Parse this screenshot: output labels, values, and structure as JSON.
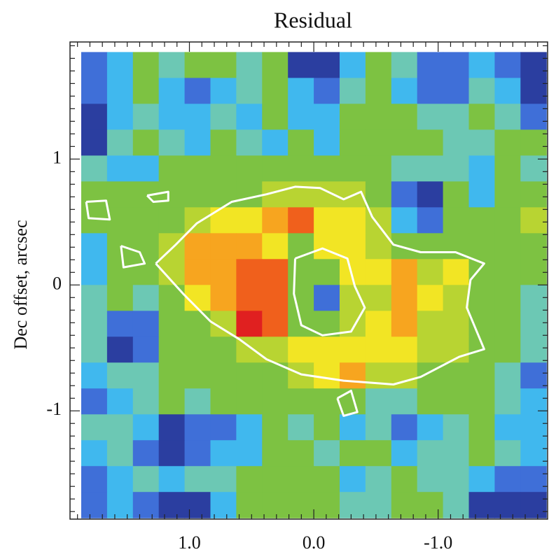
{
  "chart_data": {
    "type": "heatmap",
    "title": "Residual",
    "y_label": "Dec offset, arcsec",
    "xlim": [
      1.96,
      -1.88
    ],
    "ylim": [
      -1.86,
      1.93
    ],
    "xticks": [
      {
        "value": 1.0,
        "label": "1.0"
      },
      {
        "value": 0.0,
        "label": "0.0"
      },
      {
        "value": -1.0,
        "label": "-1.0"
      }
    ],
    "yticks": [
      1,
      0,
      -1
    ],
    "xminorticks": [
      1.9,
      1.8,
      1.7,
      1.6,
      1.5,
      1.4,
      1.3,
      1.2,
      1.1,
      0.9,
      0.8,
      0.7,
      0.6,
      0.5,
      0.4,
      0.3,
      0.2,
      0.1,
      -0.1,
      -0.2,
      -0.3,
      -0.4,
      -0.5,
      -0.6,
      -0.7,
      -0.8,
      -0.9,
      -1.1,
      -1.2,
      -1.3,
      -1.4,
      -1.5,
      -1.6,
      -1.7,
      -1.8
    ],
    "yminorticks": [
      1.9,
      1.8,
      1.7,
      1.6,
      1.5,
      1.4,
      1.3,
      1.2,
      1.1,
      0.9,
      0.8,
      0.7,
      0.6,
      0.5,
      0.4,
      0.3,
      0.2,
      0.1,
      -0.1,
      -0.2,
      -0.3,
      -0.4,
      -0.5,
      -0.6,
      -0.7,
      -0.8,
      -0.9,
      -1.1,
      -1.2,
      -1.3,
      -1.4,
      -1.5,
      -1.6,
      -1.7,
      -1.8
    ],
    "x_extent": [
      1.87,
      -1.87
    ],
    "y_extent": [
      1.85,
      -1.85
    ],
    "colorscale": [
      "#1a0a3a",
      "#2b3ea0",
      "#3f6fd8",
      "#40b8ee",
      "#6cc8b4",
      "#7dc242",
      "#b8d432",
      "#f2e524",
      "#f7a51f",
      "#f0601c",
      "#e02020"
    ],
    "z": [
      [
        2,
        3,
        5,
        4,
        5,
        5,
        4,
        5,
        1,
        1,
        3,
        5,
        4,
        2,
        2,
        3,
        2,
        1
      ],
      [
        2,
        3,
        5,
        3,
        2,
        3,
        4,
        5,
        3,
        2,
        4,
        5,
        3,
        2,
        2,
        4,
        3,
        1
      ],
      [
        1,
        3,
        4,
        3,
        3,
        4,
        3,
        5,
        3,
        3,
        5,
        5,
        5,
        4,
        4,
        5,
        4,
        2
      ],
      [
        1,
        4,
        5,
        4,
        3,
        5,
        4,
        3,
        5,
        3,
        5,
        5,
        5,
        5,
        4,
        4,
        5,
        5
      ],
      [
        4,
        3,
        3,
        5,
        5,
        5,
        5,
        5,
        5,
        5,
        5,
        5,
        4,
        4,
        4,
        3,
        5,
        4
      ],
      [
        5,
        5,
        5,
        5,
        5,
        5,
        5,
        6,
        6,
        6,
        6,
        5,
        2,
        1,
        5,
        3,
        5,
        5
      ],
      [
        5,
        5,
        5,
        5,
        6,
        7,
        7,
        8,
        9,
        7,
        7,
        6,
        3,
        2,
        5,
        5,
        5,
        6
      ],
      [
        3,
        5,
        5,
        6,
        8,
        8,
        8,
        7,
        5,
        7,
        7,
        6,
        5,
        5,
        5,
        5,
        5,
        5
      ],
      [
        3,
        5,
        5,
        6,
        8,
        8,
        9,
        9,
        5,
        5,
        7,
        7,
        8,
        6,
        7,
        5,
        5,
        5
      ],
      [
        4,
        5,
        4,
        5,
        7,
        8,
        9,
        9,
        5,
        2,
        6,
        6,
        8,
        7,
        6,
        5,
        5,
        4
      ],
      [
        4,
        2,
        2,
        5,
        5,
        6,
        10,
        9,
        5,
        5,
        6,
        7,
        8,
        6,
        6,
        5,
        5,
        4
      ],
      [
        4,
        1,
        2,
        5,
        5,
        5,
        6,
        6,
        7,
        7,
        7,
        7,
        7,
        6,
        6,
        5,
        5,
        4
      ],
      [
        3,
        4,
        4,
        5,
        5,
        5,
        5,
        5,
        6,
        7,
        8,
        6,
        6,
        5,
        5,
        5,
        4,
        2
      ],
      [
        2,
        3,
        4,
        5,
        4,
        5,
        5,
        5,
        5,
        5,
        5,
        4,
        4,
        5,
        5,
        5,
        4,
        3
      ],
      [
        4,
        4,
        3,
        1,
        2,
        2,
        3,
        5,
        4,
        5,
        3,
        4,
        2,
        3,
        4,
        5,
        3,
        3
      ],
      [
        3,
        4,
        2,
        1,
        2,
        3,
        3,
        5,
        5,
        4,
        5,
        5,
        3,
        4,
        4,
        5,
        4,
        3
      ],
      [
        2,
        3,
        4,
        3,
        4,
        4,
        5,
        5,
        5,
        5,
        3,
        4,
        5,
        4,
        4,
        3,
        2,
        2
      ],
      [
        2,
        3,
        2,
        1,
        1,
        3,
        5,
        5,
        5,
        5,
        4,
        4,
        5,
        5,
        4,
        1,
        1,
        1
      ]
    ],
    "contour_color": "#ffffff",
    "contours": [
      {
        "x": [
          1.27,
          1.11,
          0.94,
          0.66,
          0.38,
          0.15,
          -0.05,
          -0.24,
          -0.38,
          -0.47,
          -0.64,
          -0.86,
          -1.14,
          -1.37,
          -1.26,
          -1.23,
          -1.37,
          -1.17,
          -0.86,
          -0.64,
          -0.24,
          0.1,
          0.38,
          0.6,
          0.83,
          1.05,
          1.27
        ],
        "y": [
          0.17,
          0.32,
          0.49,
          0.66,
          0.72,
          0.78,
          0.77,
          0.68,
          0.74,
          0.54,
          0.32,
          0.26,
          0.26,
          0.17,
          0.04,
          -0.18,
          -0.51,
          -0.57,
          -0.73,
          -0.79,
          -0.76,
          -0.71,
          -0.59,
          -0.43,
          -0.29,
          -0.07,
          0.17
        ]
      },
      {
        "x": [
          0.15,
          -0.07,
          -0.27,
          -0.33,
          -0.41,
          -0.3,
          -0.07,
          0.1,
          0.16,
          0.15
        ],
        "y": [
          0.21,
          0.29,
          0.21,
          -0.01,
          -0.18,
          -0.37,
          -0.4,
          -0.32,
          -0.07,
          0.21
        ]
      },
      {
        "x": [
          1.34,
          1.17,
          1.17,
          1.29,
          1.34
        ],
        "y": [
          0.71,
          0.74,
          0.67,
          0.66,
          0.71
        ]
      },
      {
        "x": [
          1.83,
          1.67,
          1.64,
          1.81,
          1.83
        ],
        "y": [
          0.66,
          0.67,
          0.52,
          0.53,
          0.66
        ]
      },
      {
        "x": [
          1.55,
          1.4,
          1.36,
          1.53,
          1.55
        ],
        "y": [
          0.31,
          0.26,
          0.17,
          0.14,
          0.31
        ]
      },
      {
        "x": [
          -0.19,
          -0.3,
          -0.35,
          -0.24,
          -0.19
        ],
        "y": [
          -0.9,
          -0.84,
          -1.01,
          -1.04,
          -0.9
        ]
      }
    ]
  }
}
